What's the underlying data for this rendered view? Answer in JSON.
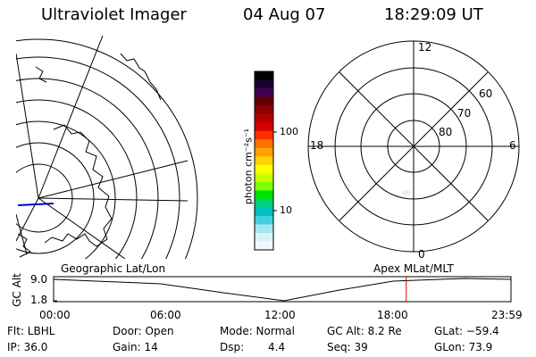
{
  "header": {
    "instrument": "Ultraviolet Imager",
    "date": "04 Aug 07",
    "time": "18:29:09  UT"
  },
  "left_panel": {
    "label": "Geographic Lat/Lon"
  },
  "right_panel": {
    "label": "Apex  MLat/MLT",
    "mlt_labels": [
      "12",
      "18",
      "6",
      "0"
    ],
    "mlat_labels": [
      "60",
      "70",
      "80"
    ]
  },
  "colorbar": {
    "unit_label": "photon cm⁻²s⁻¹",
    "tick_100": "100",
    "tick_10": "10",
    "colors": [
      "#000000",
      "#1a0030",
      "#400050",
      "#600000",
      "#8b0000",
      "#b00000",
      "#d80000",
      "#ff3000",
      "#ff7000",
      "#ffa000",
      "#ffd000",
      "#ffff00",
      "#c8ff00",
      "#80ff00",
      "#00e000",
      "#00d080",
      "#00c0c0",
      "#40d0e0",
      "#a0e8f0",
      "#d8f4f8",
      "#f0f8fa"
    ]
  },
  "timeline": {
    "axis_label": "GC Alt",
    "ytick_top": "9.0",
    "ytick_bottom": "1.8",
    "xticks": [
      "00:00",
      "06:00",
      "12:00",
      "18:00",
      "23:59"
    ],
    "current_time_fraction": 0.771,
    "marker_color": "#e00000"
  },
  "status": {
    "filter": "Flt: LBHL",
    "door": "Door: Open",
    "mode": "Mode: Normal",
    "gc_alt": "GC Alt: 8.2 Re",
    "glat": "GLat: −59.4",
    "ip": "IP: 36.0",
    "gain": "Gain: 14",
    "dsp_label": "Dsp:",
    "dsp_value": "4.4",
    "seq": "Seq: 39",
    "glon": "GLon:  73.9"
  }
}
